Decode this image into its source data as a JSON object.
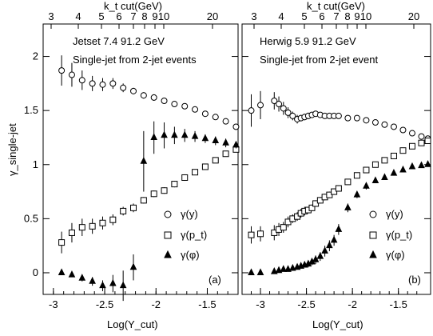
{
  "chart_data": [
    {
      "type": "scatter",
      "title": "Jetset 7.4  91.2 GeV",
      "subtitle": "Single-jet from 2-jet events",
      "panel_label": "(a)",
      "xlabel": "Log(Y_cut)",
      "ylabel": "γ_single-jet",
      "top_xlabel": "k_t cut(GeV)",
      "xlim": [
        -3.1,
        -1.2
      ],
      "ylim": [
        -0.2,
        2.3
      ],
      "x_ticks": [
        "-3",
        "-2.5",
        "-2",
        "-1.5"
      ],
      "y_ticks": [
        "0",
        "0.5",
        "1",
        "1.5",
        "2"
      ],
      "top_ticks": [
        "3",
        "4",
        "5",
        "6",
        "7",
        "8",
        "9",
        "10",
        "20"
      ],
      "legend": [
        "γ(y)",
        "γ(p_t)",
        "γ(φ)"
      ],
      "series": [
        {
          "name": "γ(y)",
          "marker": "circle",
          "x": [
            -2.92,
            -2.82,
            -2.72,
            -2.62,
            -2.52,
            -2.42,
            -2.32,
            -2.22,
            -2.12,
            -2.02,
            -1.92,
            -1.82,
            -1.72,
            -1.62,
            -1.52,
            -1.42,
            -1.32,
            -1.22
          ],
          "y": [
            1.87,
            1.83,
            1.78,
            1.75,
            1.74,
            1.75,
            1.71,
            1.68,
            1.64,
            1.62,
            1.59,
            1.56,
            1.54,
            1.51,
            1.47,
            1.44,
            1.4,
            1.35
          ],
          "err": [
            0.14,
            0.11,
            0.09,
            0.07,
            0.06,
            0.05,
            0.04,
            0.03,
            0.03,
            0.03,
            0.02,
            0.02,
            0.02,
            0.02,
            0.02,
            0.02,
            0.02,
            0.02
          ]
        },
        {
          "name": "γ(p_t)",
          "marker": "square",
          "x": [
            -2.92,
            -2.82,
            -2.72,
            -2.62,
            -2.52,
            -2.42,
            -2.32,
            -2.22,
            -2.12,
            -2.02,
            -1.92,
            -1.82,
            -1.72,
            -1.62,
            -1.52,
            -1.42,
            -1.32,
            -1.22
          ],
          "y": [
            0.28,
            0.37,
            0.42,
            0.43,
            0.46,
            0.49,
            0.57,
            0.6,
            0.67,
            0.73,
            0.76,
            0.82,
            0.88,
            0.93,
            0.98,
            1.04,
            1.1,
            1.14
          ],
          "err": [
            0.1,
            0.09,
            0.08,
            0.07,
            0.06,
            0.05,
            0.04,
            0.04,
            0.03,
            0.03,
            0.03,
            0.03,
            0.03,
            0.02,
            0.02,
            0.02,
            0.02,
            0.02
          ]
        },
        {
          "name": "γ(φ)",
          "marker": "triangle",
          "x": [
            -2.92,
            -2.82,
            -2.72,
            -2.62,
            -2.52,
            -2.42,
            -2.32,
            -2.22,
            -2.12,
            -2.02,
            -1.92,
            -1.82,
            -1.72,
            -1.62,
            -1.52,
            -1.42,
            -1.32,
            -1.22
          ],
          "y": [
            0.0,
            -0.02,
            -0.05,
            -0.08,
            -0.12,
            -0.1,
            -0.12,
            0.05,
            1.03,
            1.25,
            1.27,
            1.27,
            1.27,
            1.26,
            1.24,
            1.22,
            1.2,
            1.18
          ],
          "err": [
            0.02,
            0.02,
            0.03,
            0.04,
            0.05,
            0.08,
            0.14,
            0.12,
            0.28,
            0.15,
            0.12,
            0.08,
            0.06,
            0.05,
            0.04,
            0.04,
            0.04,
            0.03
          ]
        }
      ]
    },
    {
      "type": "scatter",
      "title": "Herwig 5.9  91.2 GeV",
      "subtitle": "Single-jet from 2-jet event",
      "panel_label": "(b)",
      "xlabel": "Log(Y_cut)",
      "ylabel": "",
      "top_xlabel": "k_t cut(GeV)",
      "xlim": [
        -3.2,
        -1.15
      ],
      "ylim": [
        -0.2,
        2.3
      ],
      "x_ticks": [
        "-3",
        "-2.5",
        "-2",
        "-1.5"
      ],
      "y_ticks": [],
      "top_ticks": [
        "3",
        "4",
        "5",
        "6",
        "7",
        "8",
        "9",
        "10",
        "20"
      ],
      "legend": [
        "γ(y)",
        "γ(p_t)",
        "γ(φ)"
      ],
      "series": [
        {
          "name": "γ(y)",
          "marker": "circle",
          "x": [
            -3.1,
            -3.0,
            -2.85,
            -2.8,
            -2.75,
            -2.7,
            -2.65,
            -2.6,
            -2.56,
            -2.52,
            -2.48,
            -2.44,
            -2.4,
            -2.35,
            -2.3,
            -2.25,
            -2.2,
            -2.15,
            -2.05,
            -1.95,
            -1.85,
            -1.75,
            -1.65,
            -1.55,
            -1.45,
            -1.35,
            -1.25,
            -1.18
          ],
          "y": [
            1.5,
            1.55,
            1.59,
            1.56,
            1.52,
            1.48,
            1.45,
            1.42,
            1.43,
            1.44,
            1.45,
            1.46,
            1.47,
            1.46,
            1.45,
            1.45,
            1.45,
            1.45,
            1.43,
            1.43,
            1.41,
            1.39,
            1.37,
            1.35,
            1.32,
            1.29,
            1.26,
            1.24
          ],
          "err": [
            0.15,
            0.13,
            0.08,
            0.07,
            0.06,
            0.05,
            0.04,
            0.04,
            0.03,
            0.03,
            0.03,
            0.02,
            0.02,
            0.02,
            0.02,
            0.02,
            0.02,
            0.02,
            0.02,
            0.02,
            0.02,
            0.02,
            0.02,
            0.02,
            0.02,
            0.02,
            0.02,
            0.02
          ]
        },
        {
          "name": "γ(p_t)",
          "marker": "square",
          "x": [
            -3.1,
            -3.0,
            -2.85,
            -2.8,
            -2.75,
            -2.7,
            -2.65,
            -2.6,
            -2.56,
            -2.52,
            -2.48,
            -2.44,
            -2.4,
            -2.35,
            -2.3,
            -2.25,
            -2.2,
            -2.15,
            -2.05,
            -1.95,
            -1.85,
            -1.75,
            -1.65,
            -1.55,
            -1.45,
            -1.35,
            -1.25,
            -1.18
          ],
          "y": [
            0.35,
            0.36,
            0.37,
            0.4,
            0.42,
            0.47,
            0.5,
            0.52,
            0.55,
            0.57,
            0.58,
            0.6,
            0.64,
            0.67,
            0.7,
            0.72,
            0.75,
            0.78,
            0.84,
            0.9,
            0.95,
            1.0,
            1.04,
            1.08,
            1.13,
            1.17,
            1.2,
            1.22
          ],
          "err": [
            0.08,
            0.07,
            0.07,
            0.06,
            0.05,
            0.05,
            0.04,
            0.04,
            0.04,
            0.04,
            0.03,
            0.03,
            0.03,
            0.03,
            0.03,
            0.03,
            0.03,
            0.03,
            0.02,
            0.02,
            0.02,
            0.02,
            0.02,
            0.02,
            0.02,
            0.02,
            0.02,
            0.02
          ]
        },
        {
          "name": "γ(φ)",
          "marker": "triangle",
          "x": [
            -3.1,
            -3.0,
            -2.85,
            -2.8,
            -2.75,
            -2.7,
            -2.65,
            -2.6,
            -2.56,
            -2.52,
            -2.48,
            -2.44,
            -2.4,
            -2.35,
            -2.3,
            -2.25,
            -2.2,
            -2.15,
            -2.05,
            -1.95,
            -1.85,
            -1.75,
            -1.65,
            -1.55,
            -1.45,
            -1.35,
            -1.25,
            -1.18
          ],
          "y": [
            0.0,
            0.0,
            0.01,
            0.02,
            0.03,
            0.03,
            0.04,
            0.05,
            0.06,
            0.07,
            0.08,
            0.1,
            0.12,
            0.15,
            0.2,
            0.25,
            0.3,
            0.4,
            0.6,
            0.72,
            0.8,
            0.85,
            0.88,
            0.92,
            0.95,
            0.98,
            0.99,
            1.0
          ],
          "err": [
            0.01,
            0.01,
            0.01,
            0.01,
            0.01,
            0.01,
            0.01,
            0.02,
            0.02,
            0.02,
            0.03,
            0.03,
            0.04,
            0.04,
            0.05,
            0.05,
            0.05,
            0.05,
            0.04,
            0.03,
            0.03,
            0.02,
            0.02,
            0.02,
            0.02,
            0.02,
            0.02,
            0.02
          ]
        }
      ]
    }
  ]
}
